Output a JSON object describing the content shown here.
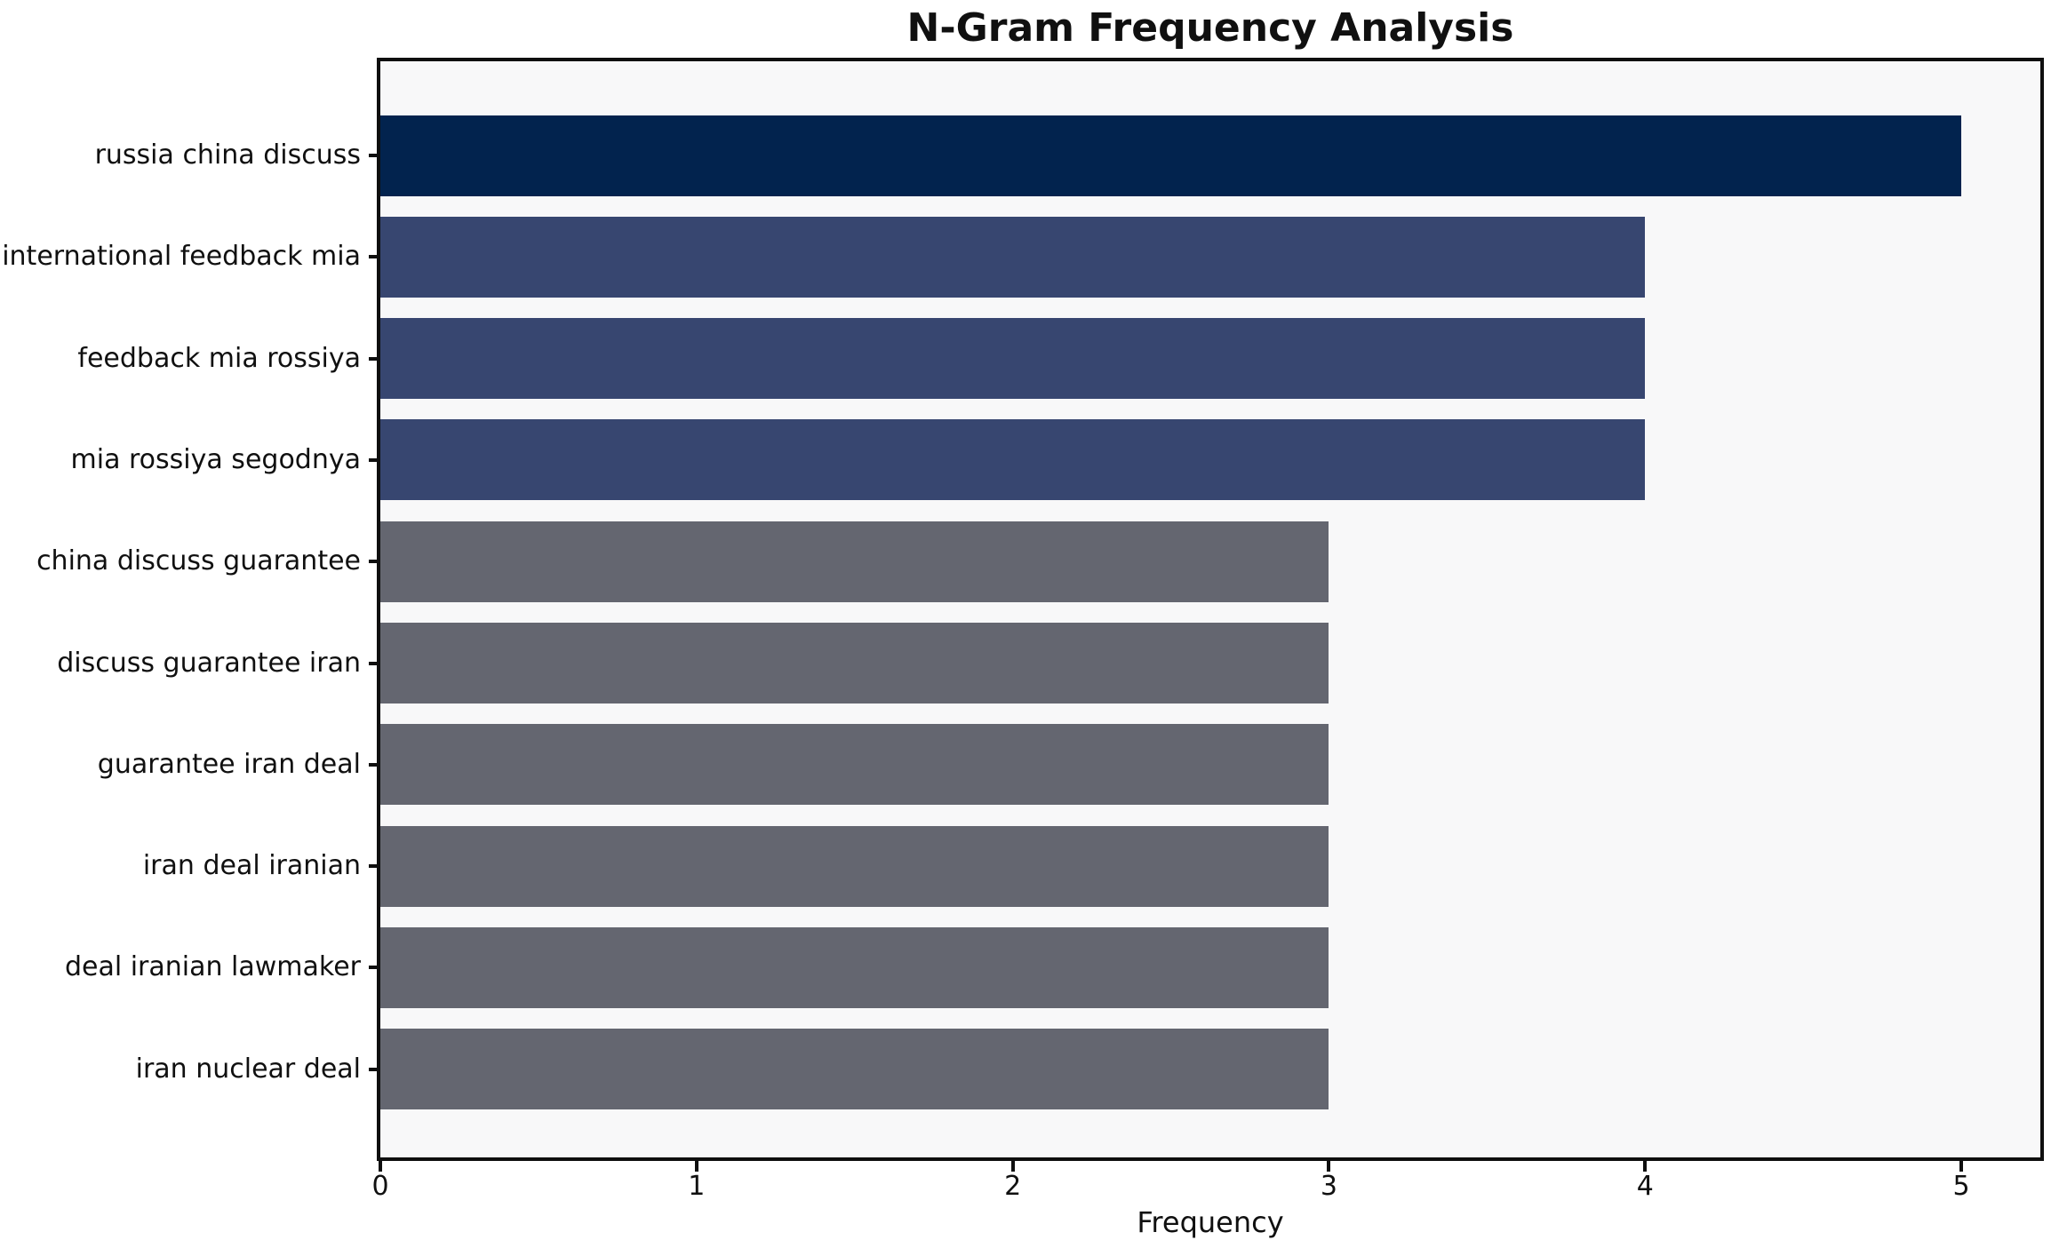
{
  "chart_data": {
    "type": "bar",
    "orientation": "horizontal",
    "title": "N-Gram Frequency Analysis",
    "xlabel": "Frequency",
    "ylabel": "",
    "categories": [
      "russia china discuss",
      "international feedback mia",
      "feedback mia rossiya",
      "mia rossiya segodnya",
      "china discuss guarantee",
      "discuss guarantee iran",
      "guarantee iran deal",
      "iran deal iranian",
      "deal iranian lawmaker",
      "iran nuclear deal"
    ],
    "values": [
      5,
      4,
      4,
      4,
      3,
      3,
      3,
      3,
      3,
      3
    ],
    "bar_colors": [
      "#02234e",
      "#374670",
      "#374670",
      "#374670",
      "#646670",
      "#646670",
      "#646670",
      "#646670",
      "#646670",
      "#646670"
    ],
    "x_ticks": [
      0,
      1,
      2,
      3,
      4,
      5
    ],
    "xlim": [
      0,
      5.25
    ],
    "grid": false,
    "legend": null,
    "colors": {
      "figure_background": "#ffffff",
      "plot_background": "#f8f8f9",
      "spine": "#0f0f0f",
      "text": "#101010"
    }
  }
}
